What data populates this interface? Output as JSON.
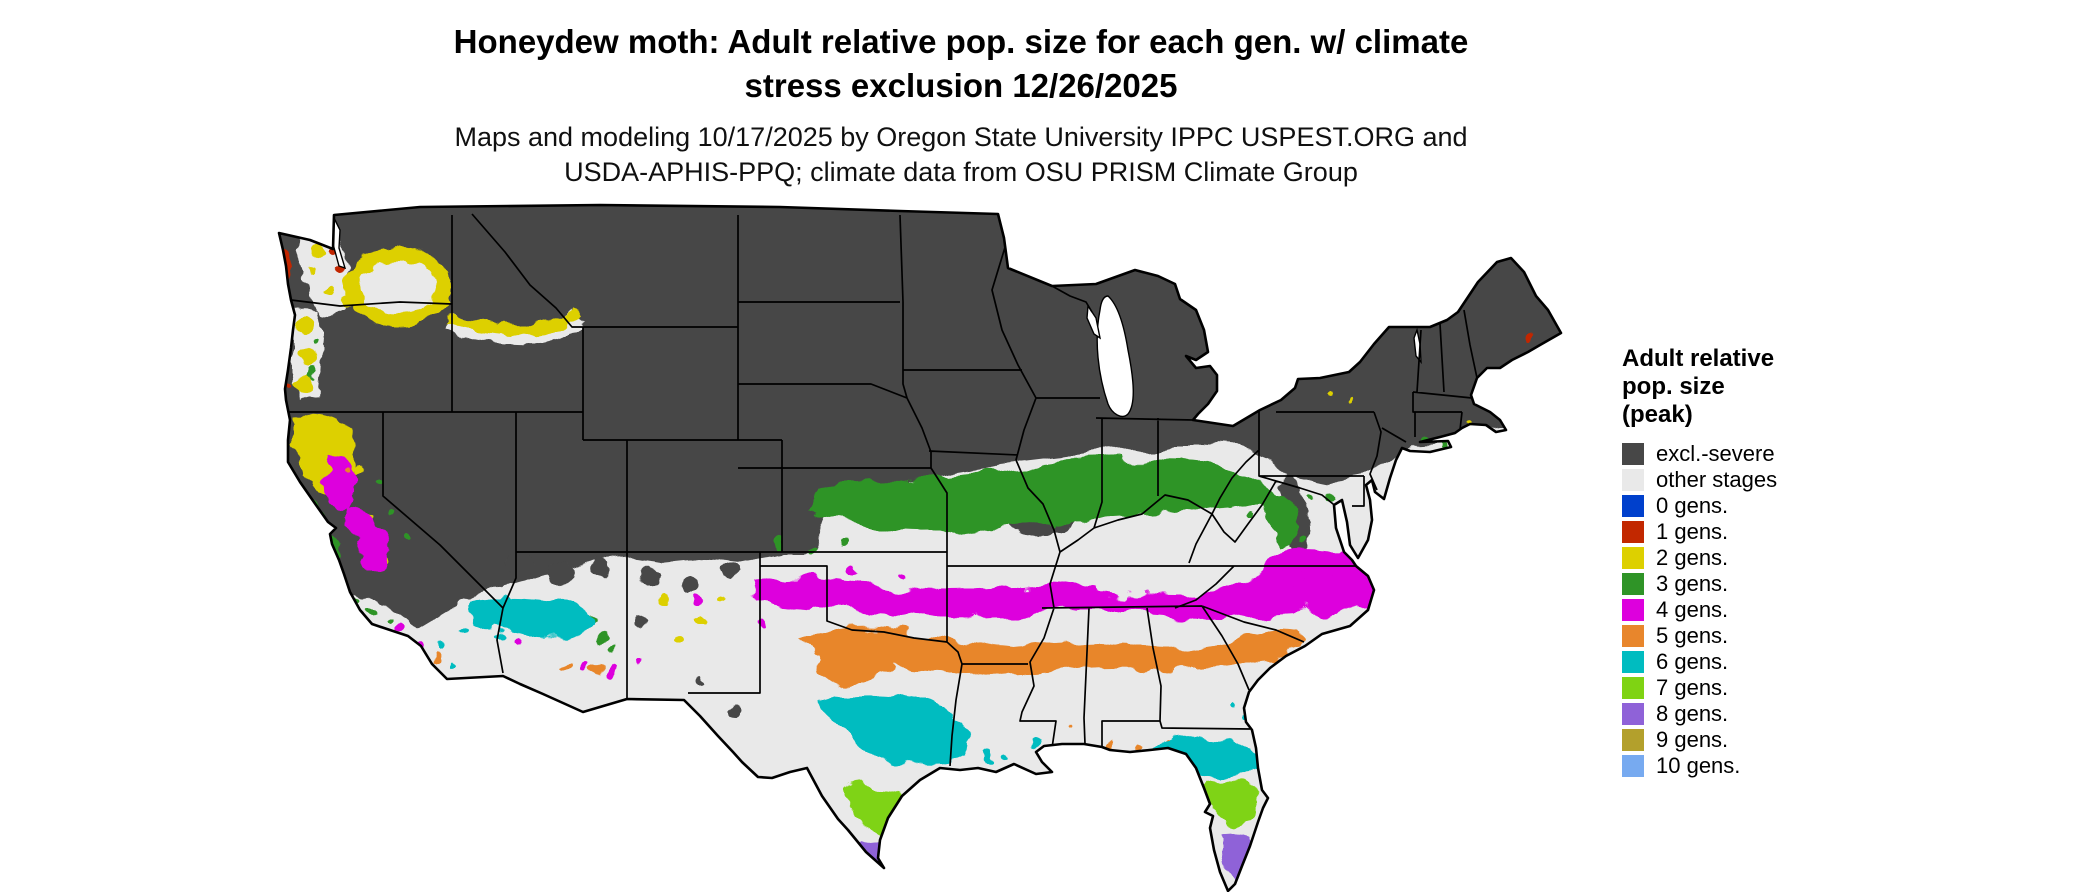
{
  "title": {
    "line1": "Honeydew moth: Adult relative pop. size for each gen. w/ climate",
    "line2": "stress exclusion 12/26/2025"
  },
  "subtitle": {
    "line1": "Maps and modeling 10/17/2025 by Oregon State University IPPC USPEST.ORG and",
    "line2": "USDA-APHIS-PPQ; climate data from OSU PRISM Climate Group"
  },
  "legend": {
    "title_lines": [
      "Adult relative",
      "pop. size",
      "(peak)"
    ],
    "items": [
      {
        "key": "excl",
        "label": "excl.-severe",
        "color": "#474747"
      },
      {
        "key": "other",
        "label": "other stages",
        "color": "#e9e9e9"
      },
      {
        "key": "g0",
        "label": "0 gens.",
        "color": "#0040cc"
      },
      {
        "key": "g1",
        "label": "1 gens.",
        "color": "#c22800"
      },
      {
        "key": "g2",
        "label": "2 gens.",
        "color": "#ddd000"
      },
      {
        "key": "g3",
        "label": "3 gens.",
        "color": "#2f9427"
      },
      {
        "key": "g4",
        "label": "4 gens.",
        "color": "#dd00dd"
      },
      {
        "key": "g5",
        "label": "5 gens.",
        "color": "#e8862c"
      },
      {
        "key": "g6",
        "label": "6 gens.",
        "color": "#00bcc0"
      },
      {
        "key": "g7",
        "label": "7 gens.",
        "color": "#7fd313"
      },
      {
        "key": "g8",
        "label": "8 gens.",
        "color": "#8f62d8"
      },
      {
        "key": "g9",
        "label": "9 gens.",
        "color": "#b3a02c"
      },
      {
        "key": "g10",
        "label": "10 gens.",
        "color": "#77aaf0"
      }
    ]
  },
  "map": {
    "water_color": "#ffffff",
    "border_color": "#000000",
    "outline_width": 2.6,
    "state_line_width": 1.7
  }
}
